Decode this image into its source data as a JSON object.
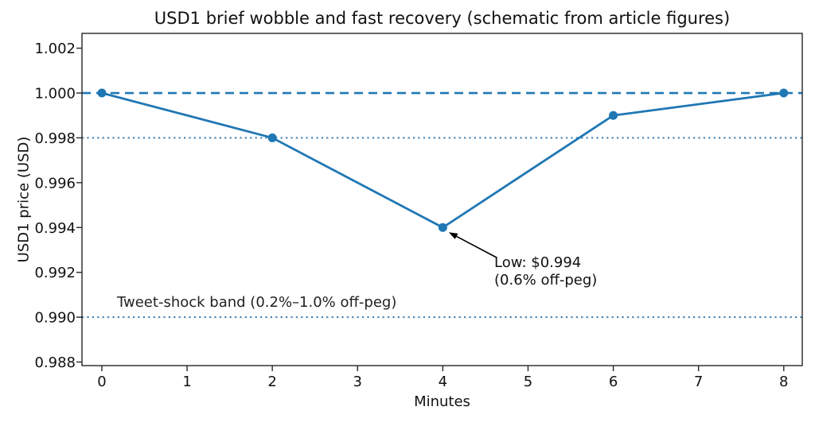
{
  "chart_data": {
    "type": "line",
    "title": "USD1 brief wobble and fast recovery (schematic from article figures)",
    "xlabel": "Minutes",
    "ylabel": "USD1 price (USD)",
    "series": [
      {
        "name": "USD1 price",
        "x": [
          0,
          2,
          4,
          6,
          8
        ],
        "y": [
          1.0,
          0.998,
          0.994,
          0.999,
          1.0
        ],
        "color": "#1f77b4",
        "marker": "circle",
        "line_width": 2.8,
        "marker_radius": 5.5
      }
    ],
    "xticks": [
      0,
      1,
      2,
      3,
      4,
      5,
      6,
      7,
      8
    ],
    "xtick_labels": [
      "0",
      "1",
      "2",
      "3",
      "4",
      "5",
      "6",
      "7",
      "8"
    ],
    "yticks": [
      0.988,
      0.99,
      0.992,
      0.994,
      0.996,
      0.998,
      1.0,
      1.002
    ],
    "ytick_labels": [
      "0.988",
      "0.990",
      "0.992",
      "0.994",
      "0.996",
      "0.998",
      "1.000",
      "1.002"
    ],
    "xlim": [
      -0.233,
      8.217
    ],
    "ylim": [
      0.98784,
      1.00266
    ],
    "grid": false,
    "legend": null,
    "reference_lines": [
      {
        "y": 1.0,
        "style": "dashed",
        "color": "#1f77b4",
        "role": "peg"
      },
      {
        "y": 0.998,
        "style": "dotted",
        "color": "#4682b4",
        "role": "band-upper"
      },
      {
        "y": 0.99,
        "style": "dotted",
        "color": "#4682b4",
        "role": "band-lower"
      }
    ],
    "annotation": {
      "line1": "Low: $0.994",
      "line2": "(0.6% off-peg)",
      "target": {
        "x": 4,
        "y": 0.994
      },
      "arrow_color": "#000000"
    },
    "band_label": "Tweet-shock band (0.2%–1.0% off-peg)",
    "colors": {
      "axis": "#262626",
      "text": "#111111",
      "background": "#ffffff"
    }
  }
}
